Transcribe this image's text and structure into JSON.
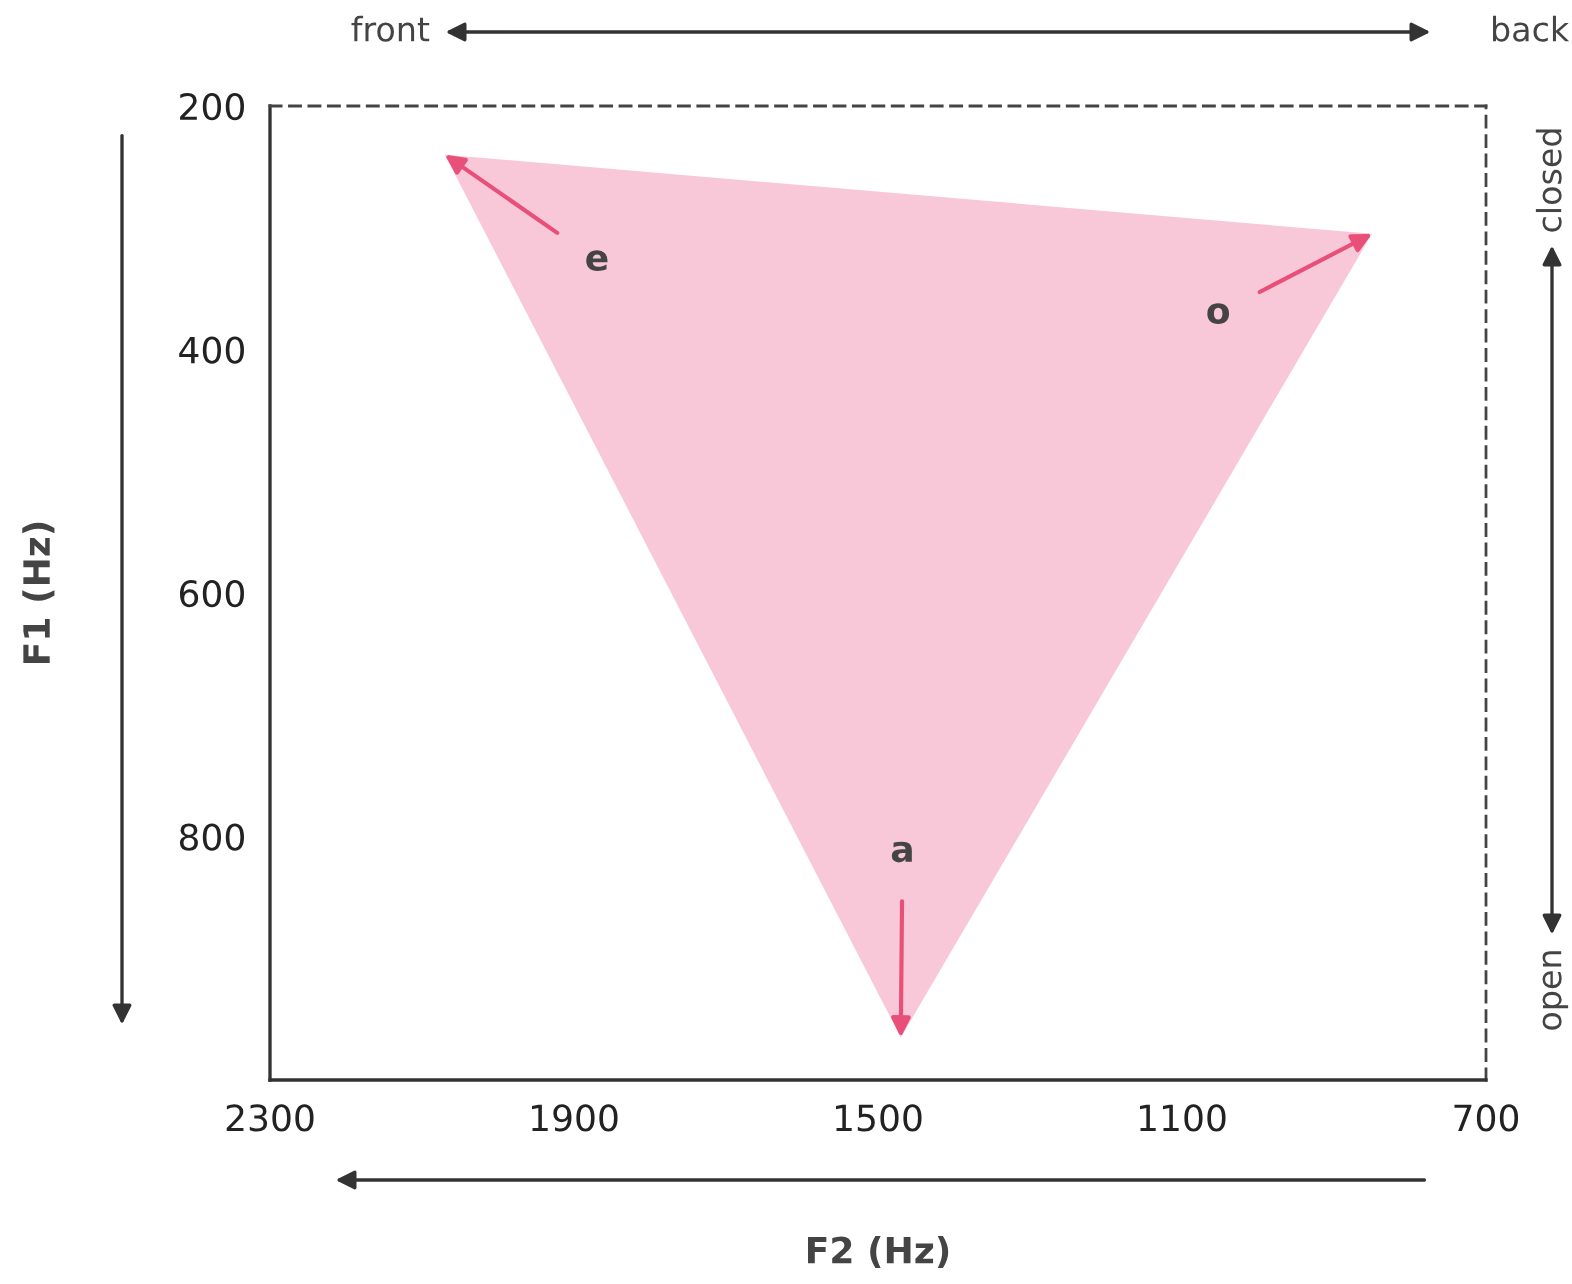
{
  "chart_data": {
    "type": "area",
    "xlabel": "F2 (Hz)",
    "ylabel": "F1 (Hz)",
    "x": [
      2070,
      850,
      1470
    ],
    "series": [
      {
        "color": "#f8c8d8",
        "values": [
          240,
          305,
          965
        ]
      }
    ],
    "xlim": [
      2300,
      700
    ],
    "xticks": [
      2300,
      1900,
      1500,
      1100,
      700
    ],
    "ylim": [
      1000,
      200
    ],
    "yticks": [
      200,
      400,
      600,
      800
    ],
    "grid": false,
    "annotations": [
      {
        "text": "e",
        "x": 2070,
        "y": 240
      },
      {
        "text": "o",
        "x": 850,
        "y": 305
      },
      {
        "text": "a",
        "x": 1470,
        "y": 965
      },
      "front",
      "back",
      "closed",
      "open"
    ]
  }
}
